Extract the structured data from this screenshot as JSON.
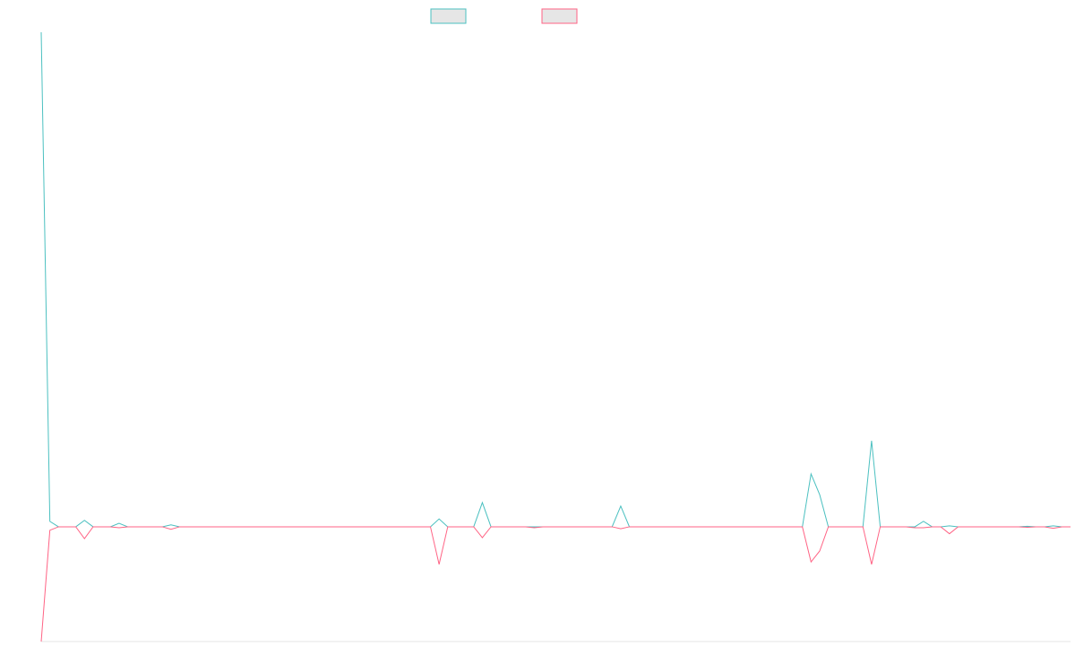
{
  "chart_data": {
    "type": "line",
    "ylim": [
      -23.2,
      100
    ],
    "series": [
      {
        "color": "#4bc0c0",
        "values": [
          100,
          1.1,
          0,
          0,
          0,
          1.3,
          0,
          0,
          0,
          0.7,
          0,
          0,
          0,
          0,
          0,
          0.4,
          0,
          0,
          0,
          0,
          0,
          0,
          0,
          0,
          0,
          0,
          0,
          0,
          0,
          0,
          0,
          0,
          0,
          0,
          0,
          0,
          0,
          0,
          0,
          0,
          0,
          0,
          0,
          0,
          0,
          0,
          1.6,
          0,
          0,
          0,
          0,
          4.9,
          0,
          0,
          0,
          0,
          0,
          0,
          0,
          0,
          0,
          0,
          0,
          0,
          0,
          0,
          0,
          4.2,
          0,
          0,
          0,
          0,
          0,
          0,
          0,
          0,
          0,
          0,
          0,
          0,
          0,
          0,
          0,
          0,
          0,
          0,
          0,
          0,
          0,
          10.7,
          6.5,
          0,
          0,
          0,
          0,
          0,
          17.4,
          0,
          0,
          0,
          0,
          0,
          1.1,
          0,
          0,
          0.2,
          0,
          0,
          0,
          0,
          0,
          0,
          0,
          0,
          0.1,
          0,
          0,
          0.2,
          0,
          0
        ]
      },
      {
        "color": "#ff6384",
        "values": [
          -23.2,
          -0.7,
          0,
          0,
          0,
          -2.4,
          0,
          0,
          0,
          -0.2,
          0,
          0,
          0,
          0,
          0,
          -0.5,
          0,
          0,
          0,
          0,
          0,
          0,
          0,
          0,
          0,
          0,
          0,
          0,
          0,
          0,
          0,
          0,
          0,
          0,
          0,
          0,
          0,
          0,
          0,
          0,
          0,
          0,
          0,
          0,
          0,
          0,
          -7.6,
          0,
          0,
          0,
          0,
          -2.2,
          0,
          0,
          0,
          0,
          0,
          -0.2,
          0,
          0,
          0,
          0,
          0,
          0,
          0,
          0,
          0,
          -0.4,
          0,
          0,
          0,
          0,
          0,
          0,
          0,
          0,
          0,
          0,
          0,
          0,
          0,
          0,
          0,
          0,
          0,
          0,
          0,
          0,
          0,
          -7.1,
          -4.9,
          0,
          0,
          0,
          0,
          0,
          -7.6,
          0,
          0,
          0,
          0,
          -0.2,
          -0.2,
          0,
          0,
          -1.4,
          0,
          0,
          0,
          0,
          0,
          0,
          0,
          0,
          -0.1,
          0,
          0,
          -0.3,
          0,
          0
        ]
      }
    ]
  }
}
